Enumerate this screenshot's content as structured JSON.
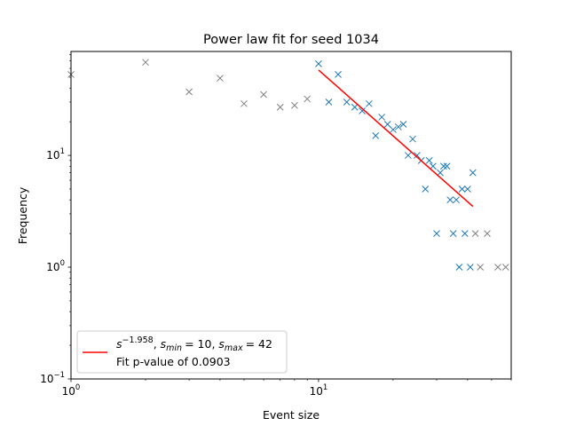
{
  "chart_data": {
    "type": "scatter",
    "title": "Power law fit for seed 1034",
    "xlabel": "Event size",
    "ylabel": "Frequency",
    "xscale": "log",
    "yscale": "log",
    "xlim": [
      1,
      60
    ],
    "ylim": [
      0.1,
      85
    ],
    "xticks": [
      {
        "value": 1,
        "base": "10",
        "exp": "0"
      },
      {
        "value": 10,
        "base": "10",
        "exp": "1"
      }
    ],
    "yticks": [
      {
        "value": 0.1,
        "base": "10",
        "exp": "−1"
      },
      {
        "value": 1,
        "base": "10",
        "exp": "0"
      },
      {
        "value": 10,
        "base": "10",
        "exp": "1"
      }
    ],
    "series": [
      {
        "role": "excluded",
        "color": "#808080",
        "marker": "x",
        "points": [
          [
            1,
            53
          ],
          [
            2,
            68
          ],
          [
            3,
            37
          ],
          [
            4,
            49
          ],
          [
            5,
            29
          ],
          [
            6,
            35
          ],
          [
            7,
            27
          ],
          [
            8,
            28
          ],
          [
            9,
            32
          ],
          [
            43,
            2
          ],
          [
            48,
            2
          ],
          [
            45,
            1
          ],
          [
            53,
            1
          ],
          [
            57,
            1
          ]
        ]
      },
      {
        "role": "fitted",
        "color": "#1f77b4",
        "marker": "x",
        "points": [
          [
            10,
            66
          ],
          [
            11,
            30
          ],
          [
            12,
            53
          ],
          [
            13,
            30
          ],
          [
            14,
            27
          ],
          [
            15,
            25
          ],
          [
            16,
            29
          ],
          [
            17,
            15
          ],
          [
            18,
            22
          ],
          [
            19,
            19
          ],
          [
            20,
            17
          ],
          [
            21,
            18
          ],
          [
            22,
            19
          ],
          [
            23,
            10
          ],
          [
            24,
            14
          ],
          [
            25,
            10
          ],
          [
            26,
            9
          ],
          [
            27,
            5
          ],
          [
            28,
            9
          ],
          [
            29,
            8
          ],
          [
            30,
            2
          ],
          [
            31,
            7
          ],
          [
            32,
            8
          ],
          [
            33,
            8
          ],
          [
            34,
            4
          ],
          [
            35,
            2
          ],
          [
            36,
            4
          ],
          [
            37,
            1
          ],
          [
            38,
            5
          ],
          [
            39,
            2
          ],
          [
            40,
            5
          ],
          [
            41,
            1
          ],
          [
            42,
            7
          ]
        ]
      }
    ],
    "fit_line": {
      "color": "#ff0000",
      "exponent": -1.958,
      "smin": 10,
      "smax": 42,
      "points": [
        [
          10,
          58
        ],
        [
          42,
          3.5
        ]
      ]
    },
    "legend": {
      "placement": "lower-left",
      "entry_expr": {
        "s": "s",
        "exp": "−1.958",
        "sep": ", ",
        "smin_label": "min",
        "smin_value": "= 10",
        "smax_label": "max",
        "smax_value": "= 42"
      },
      "pvalue_text": "Fit p-value of 0.0903"
    }
  }
}
